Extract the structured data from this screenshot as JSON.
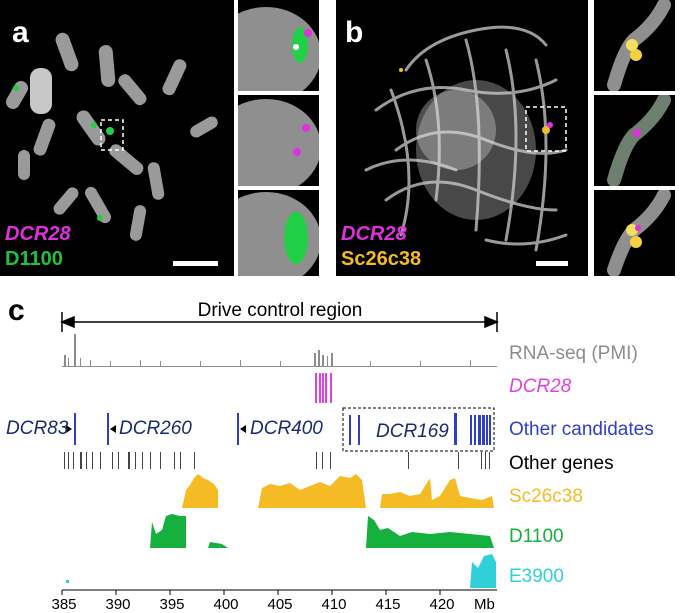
{
  "panels": {
    "a": {
      "letter": "a",
      "probe1": "DCR28",
      "probe2": "D1100"
    },
    "b": {
      "letter": "b",
      "probe1": "DCR28",
      "probe2": "Sc26c38"
    },
    "c": {
      "letter": "c",
      "region_label": "Drive control region",
      "axis_unit": "Mb",
      "axis_ticks": [
        "385",
        "390",
        "395",
        "400",
        "405",
        "410",
        "415",
        "420"
      ],
      "tracks": [
        {
          "label": "RNA-seq (PMI)",
          "color": "#8c8c8c",
          "italic": false
        },
        {
          "label": "DCR28",
          "color": "#e040e0",
          "italic": true
        },
        {
          "label": "Other candidates",
          "color": "#2f3fc8",
          "italic": false
        },
        {
          "label": "Other genes",
          "color": "#000000",
          "italic": false
        },
        {
          "label": "Sc26c38",
          "color": "#f5bb25",
          "italic": false
        },
        {
          "label": "D1100",
          "color": "#15b03e",
          "italic": false
        },
        {
          "label": "E3900",
          "color": "#30d0d8",
          "italic": false
        }
      ],
      "candidates": [
        "DCR83",
        "DCR260",
        "DCR400",
        "DCR169"
      ]
    }
  },
  "colors": {
    "magenta": "#e030e0",
    "green": "#20c040",
    "gold": "#f5bb25",
    "cyan": "#30d0d8",
    "blue": "#2f3fc8",
    "navy": "#1a2a6c"
  }
}
